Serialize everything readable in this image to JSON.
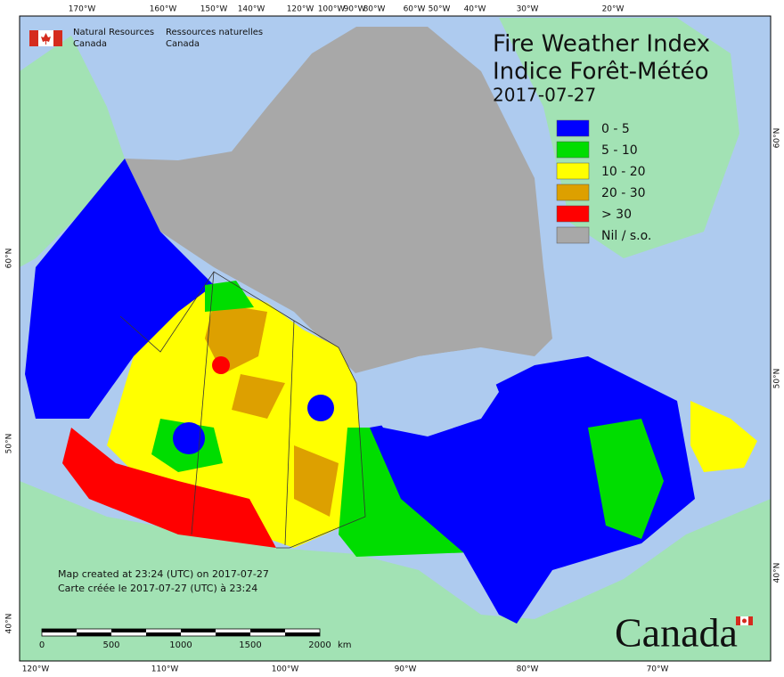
{
  "header": {
    "title": "Fire Weather Index",
    "title_fr": "Indice Forêt-Météo",
    "date": "2017-07-27"
  },
  "agency": {
    "en": [
      "Natural Resources",
      "Canada"
    ],
    "fr": [
      "Ressources naturelles",
      "Canada"
    ]
  },
  "legend": [
    {
      "label": "0 - 5",
      "color": "#0000ff"
    },
    {
      "label": "5 - 10",
      "color": "#00dd00"
    },
    {
      "label": "10 - 20",
      "color": "#ffff00"
    },
    {
      "label": "20 - 30",
      "color": "#dda000"
    },
    {
      "label": "> 30",
      "color": "#ff0000"
    },
    {
      "label": "Nil / s.o.",
      "color": "#a8a8a8"
    }
  ],
  "notes": [
    "Map created at 23:24 (UTC) on 2017-07-27",
    "Carte créée le 2017-07-27 (UTC) à 23:24"
  ],
  "scale_bar": {
    "labels": [
      0,
      500,
      1000,
      1500,
      2000
    ],
    "unit": "km"
  },
  "top_labels": [
    "170°W",
    "160°W",
    "150°W",
    "140°W",
    "120°W",
    "100°W",
    "90°W",
    "80°W",
    "60°W",
    "50°W",
    "40°W",
    "30°W",
    "20°W"
  ],
  "bottom_labels": [
    "120°W",
    "110°W",
    "100°W",
    "90°W",
    "80°W",
    "70°W"
  ],
  "left_labels": [
    "60°N",
    "50°N",
    "40°N"
  ],
  "right_labels": [
    "60°N",
    "50°N",
    "40°N"
  ],
  "wordmark": "Canada"
}
